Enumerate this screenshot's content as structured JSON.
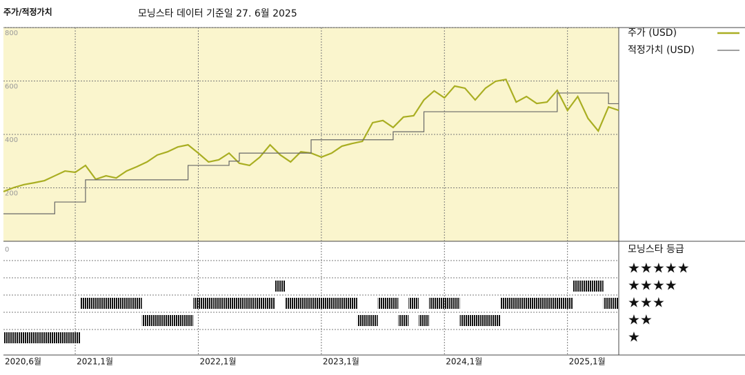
{
  "chart_data": {
    "type": "line",
    "title": "주가/적정가치",
    "subtitle": "모닝스타 데이터 기준일 27. 6월 2025",
    "x": [
      "2020-06",
      "2020-07",
      "2020-08",
      "2020-09",
      "2020-10",
      "2020-11",
      "2020-12",
      "2021-01",
      "2021-02",
      "2021-03",
      "2021-04",
      "2021-05",
      "2021-06",
      "2021-07",
      "2021-08",
      "2021-09",
      "2021-10",
      "2021-11",
      "2021-12",
      "2022-01",
      "2022-02",
      "2022-03",
      "2022-04",
      "2022-05",
      "2022-06",
      "2022-07",
      "2022-08",
      "2022-09",
      "2022-10",
      "2022-11",
      "2022-12",
      "2023-01",
      "2023-02",
      "2023-03",
      "2023-04",
      "2023-05",
      "2023-06",
      "2023-07",
      "2023-08",
      "2023-09",
      "2023-10",
      "2023-11",
      "2023-12",
      "2024-01",
      "2024-02",
      "2024-03",
      "2024-04",
      "2024-05",
      "2024-06",
      "2024-07",
      "2024-08",
      "2024-09",
      "2024-10",
      "2024-11",
      "2024-12",
      "2025-01",
      "2025-02",
      "2025-03",
      "2025-04",
      "2025-05",
      "2025-06"
    ],
    "series": [
      {
        "name": "주가 (USD)",
        "color": "#a9ae22",
        "style": "line",
        "values": [
          186,
          201,
          212,
          219,
          227,
          245,
          263,
          258,
          284,
          232,
          245,
          237,
          263,
          279,
          297,
          323,
          335,
          353,
          361,
          330,
          297,
          305,
          330,
          292,
          284,
          315,
          361,
          323,
          297,
          335,
          330,
          315,
          330,
          356,
          366,
          374,
          444,
          452,
          426,
          465,
          470,
          529,
          563,
          537,
          581,
          573,
          529,
          573,
          599,
          606,
          521,
          542,
          516,
          521,
          565,
          490,
          542,
          460,
          413,
          503,
          490
        ]
      },
      {
        "name": "적정가치 (USD)",
        "color": "#666666",
        "style": "step",
        "values": [
          103,
          103,
          103,
          103,
          103,
          147,
          147,
          147,
          230,
          230,
          230,
          230,
          230,
          230,
          230,
          230,
          230,
          230,
          284,
          284,
          284,
          284,
          300,
          330,
          330,
          330,
          330,
          330,
          330,
          330,
          380,
          380,
          380,
          380,
          380,
          380,
          380,
          380,
          410,
          410,
          410,
          485,
          485,
          485,
          485,
          485,
          485,
          485,
          485,
          485,
          485,
          485,
          485,
          485,
          555,
          555,
          555,
          555,
          555,
          515,
          515
        ]
      }
    ],
    "xlim": [
      "2020-06",
      "2025-06"
    ],
    "xticks": [
      {
        "value": "2020-06",
        "label": "2020,6월"
      },
      {
        "value": "2021-01",
        "label": "2021,1월"
      },
      {
        "value": "2022-01",
        "label": "2022,1월"
      },
      {
        "value": "2023-01",
        "label": "2023,1월"
      },
      {
        "value": "2024-01",
        "label": "2024,1월"
      },
      {
        "value": "2025-01",
        "label": "2025,1월"
      }
    ],
    "ylim": [
      0,
      800
    ],
    "yticks": [
      200,
      400,
      600,
      800
    ],
    "grid": true,
    "background": "#faf5cd",
    "ratings": {
      "title": "모닝스타 등급",
      "ytick": 0,
      "levels": [
        5,
        4,
        3,
        2,
        1
      ],
      "level_labels": [
        "★★★★★",
        "★★★★",
        "★★★",
        "★★",
        "★"
      ],
      "values": [
        1,
        1,
        1,
        1,
        1,
        1,
        1,
        1,
        3,
        3,
        3,
        3,
        3,
        3,
        2,
        2,
        2,
        2,
        2,
        3,
        3,
        3,
        3,
        3,
        3,
        3,
        3,
        4,
        3,
        3,
        3,
        3,
        3,
        3,
        3,
        2,
        2,
        3,
        3,
        2,
        3,
        2,
        3,
        3,
        3,
        2,
        2,
        2,
        2,
        3,
        3,
        3,
        3,
        3,
        3,
        3,
        4,
        4,
        4,
        3,
        3
      ]
    }
  }
}
